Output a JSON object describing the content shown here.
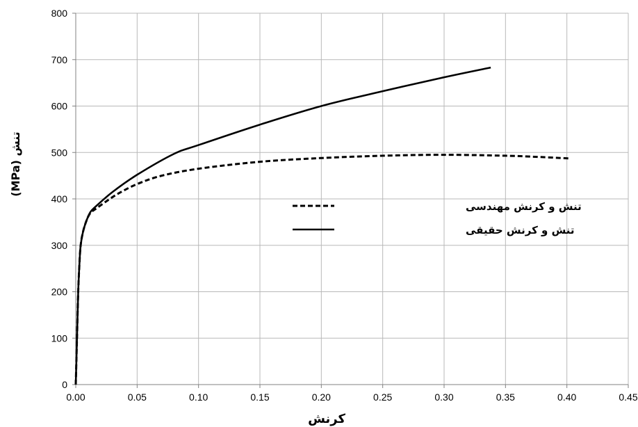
{
  "chart_data": {
    "type": "line",
    "xlabel": "کرنش",
    "ylabel": "تنش (MPa)",
    "xlim": [
      0,
      0.45
    ],
    "ylim": [
      0,
      800
    ],
    "x_ticks": [
      "0.00",
      "0.05",
      "0.10",
      "0.15",
      "0.20",
      "0.25",
      "0.30",
      "0.35",
      "0.40",
      "0.45"
    ],
    "y_ticks": [
      "0",
      "100",
      "200",
      "300",
      "400",
      "500",
      "600",
      "700",
      "800"
    ],
    "grid": true,
    "legend_position": "center-right",
    "series": [
      {
        "name": "تنش و کرنش مهندسی",
        "style": "dashed",
        "color": "#000000",
        "points": [
          [
            0.0,
            0
          ],
          [
            0.001,
            100
          ],
          [
            0.002,
            200
          ],
          [
            0.003,
            260
          ],
          [
            0.004,
            300
          ],
          [
            0.006,
            330
          ],
          [
            0.009,
            355
          ],
          [
            0.012,
            370
          ],
          [
            0.016,
            378
          ],
          [
            0.025,
            395
          ],
          [
            0.035,
            412
          ],
          [
            0.05,
            432
          ],
          [
            0.07,
            450
          ],
          [
            0.1,
            465
          ],
          [
            0.15,
            480
          ],
          [
            0.2,
            488
          ],
          [
            0.25,
            493
          ],
          [
            0.3,
            495
          ],
          [
            0.35,
            493
          ],
          [
            0.38,
            490
          ],
          [
            0.403,
            487
          ]
        ]
      },
      {
        "name": "تنش و کرنش حقیقی",
        "style": "solid",
        "color": "#000000",
        "points": [
          [
            0.0,
            0
          ],
          [
            0.001,
            100
          ],
          [
            0.002,
            200
          ],
          [
            0.003,
            260
          ],
          [
            0.004,
            300
          ],
          [
            0.006,
            330
          ],
          [
            0.009,
            355
          ],
          [
            0.012,
            372
          ],
          [
            0.016,
            383
          ],
          [
            0.03,
            415
          ],
          [
            0.05,
            452
          ],
          [
            0.08,
            497
          ],
          [
            0.1,
            516
          ],
          [
            0.15,
            560
          ],
          [
            0.2,
            600
          ],
          [
            0.25,
            632
          ],
          [
            0.3,
            662
          ],
          [
            0.338,
            683
          ]
        ]
      }
    ]
  }
}
